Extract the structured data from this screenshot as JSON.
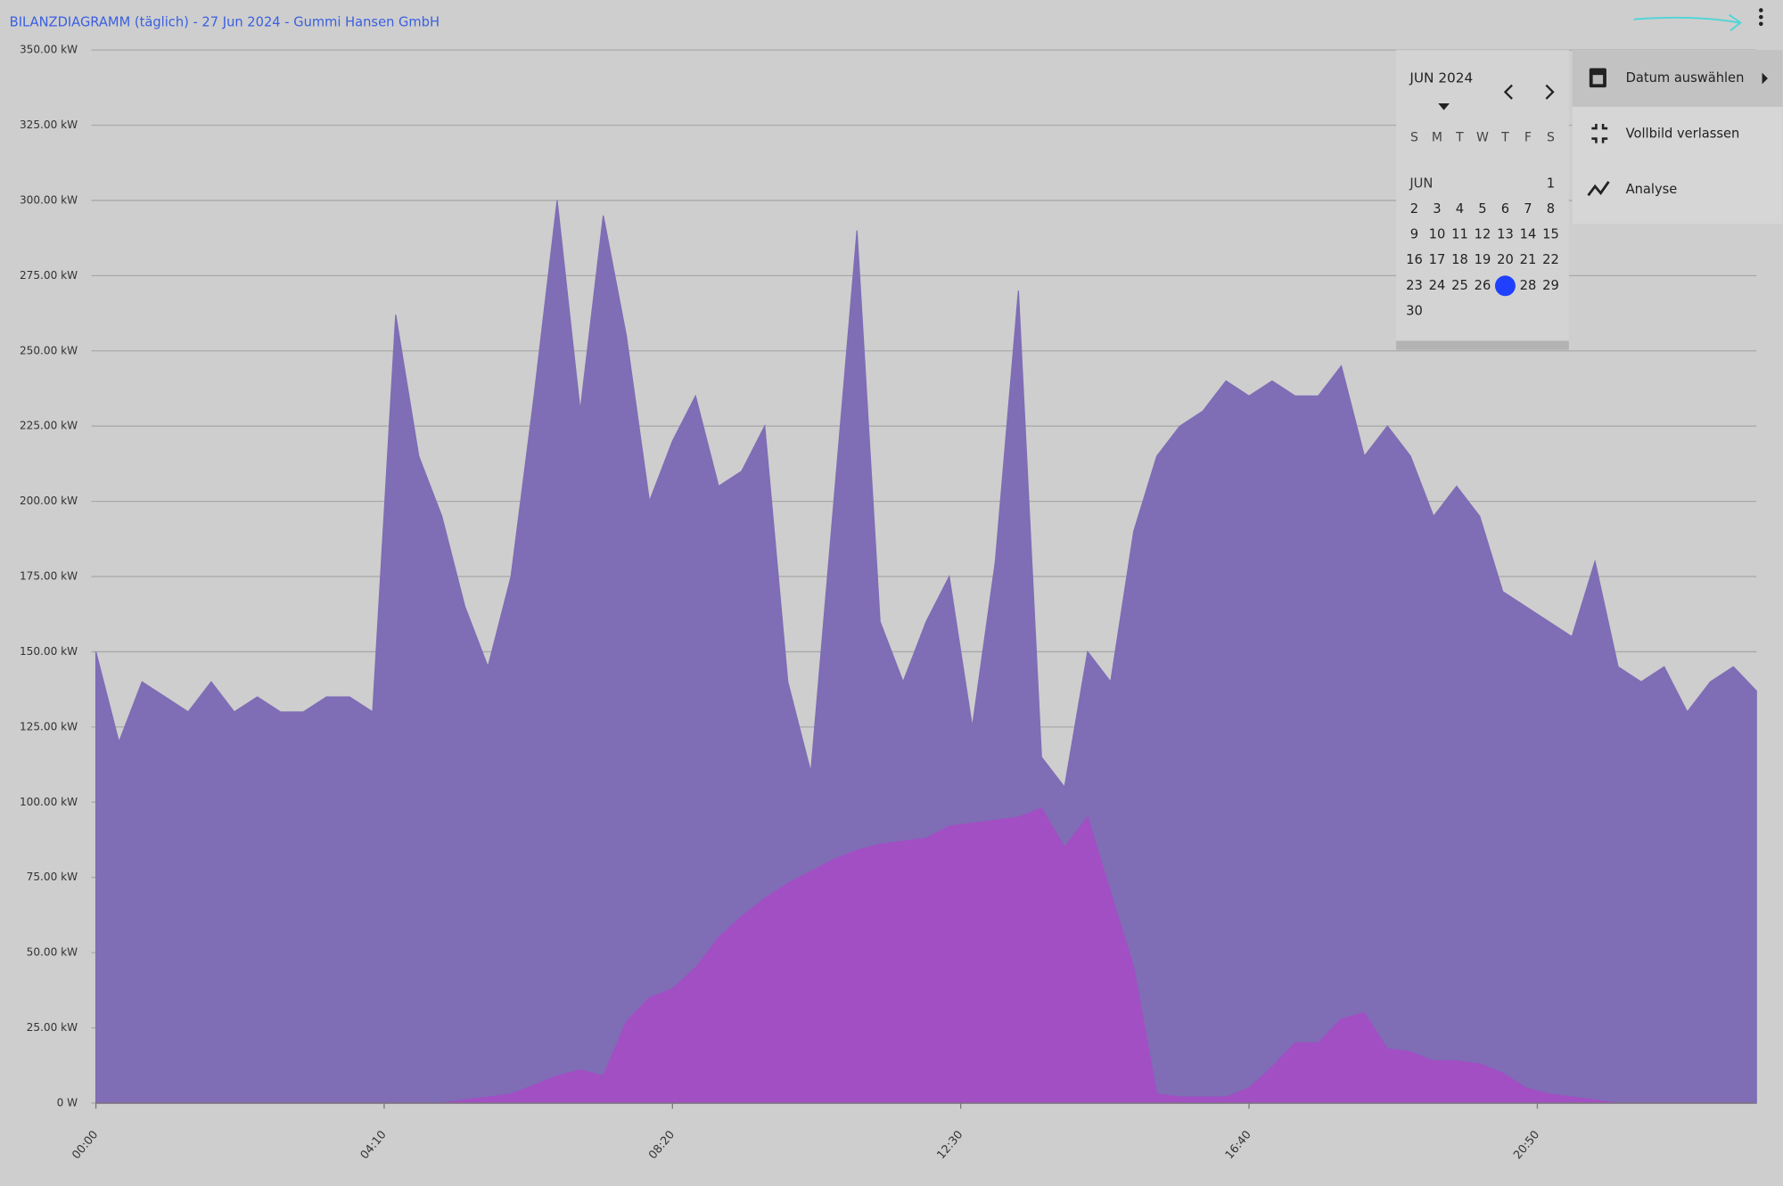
{
  "header": {
    "title": "BILANZDIAGRAMM (täglich) - 27 Jun 2024 - Gummi Hansen GmbH"
  },
  "chart_data": {
    "type": "area",
    "x": [
      0,
      20,
      40,
      60,
      80,
      100,
      120,
      140,
      160,
      180,
      200,
      220,
      240,
      260,
      280,
      300,
      320,
      340,
      360,
      380,
      400,
      420,
      440,
      460,
      480,
      500,
      520,
      540,
      560,
      580,
      600,
      620,
      640,
      660,
      680,
      700,
      720,
      740,
      760,
      780,
      800,
      820,
      840,
      860,
      880,
      900,
      920,
      940,
      960,
      980,
      1000,
      1020,
      1040,
      1060,
      1080,
      1100,
      1120,
      1140,
      1160,
      1180,
      1200,
      1220,
      1240,
      1260,
      1280,
      1300,
      1320,
      1340,
      1360,
      1380,
      1400,
      1420,
      1440
    ],
    "series": [
      {
        "color": "#7f6db5",
        "values": [
          150,
          120,
          140,
          135,
          130,
          140,
          130,
          135,
          130,
          130,
          135,
          135,
          130,
          262,
          215,
          195,
          165,
          145,
          175,
          235,
          300,
          230,
          295,
          255,
          200,
          220,
          235,
          205,
          210,
          225,
          140,
          110,
          200,
          290,
          160,
          140,
          160,
          175,
          125,
          180,
          270,
          115,
          105,
          150,
          140,
          190,
          215,
          225,
          230,
          240,
          235,
          240,
          235,
          235,
          245,
          215,
          225,
          215,
          195,
          205,
          195,
          170,
          165,
          160,
          155,
          180,
          145,
          140,
          145,
          130,
          140,
          145,
          137
        ]
      },
      {
        "color": "#a24fc4",
        "values": [
          0,
          0,
          0,
          0,
          0,
          0,
          0,
          0,
          0,
          0,
          0,
          0,
          0,
          0,
          0,
          0,
          1,
          2,
          3,
          6,
          9,
          11,
          9,
          27,
          35,
          38,
          45,
          55,
          62,
          68,
          73,
          77,
          81,
          84,
          86,
          87,
          88,
          92,
          93,
          94,
          95,
          98,
          85,
          95,
          70,
          45,
          3,
          2,
          2,
          2,
          5,
          12,
          20,
          20,
          28,
          30,
          18,
          17,
          14,
          14,
          13,
          10,
          5,
          3,
          2,
          1,
          0,
          0,
          0,
          0,
          0,
          0,
          0
        ]
      }
    ],
    "xlim": [
      0,
      1440
    ],
    "xticks": [
      {
        "value": 0,
        "label": "00:00"
      },
      {
        "value": 250,
        "label": "04:10"
      },
      {
        "value": 500,
        "label": "08:20"
      },
      {
        "value": 750,
        "label": "12:30"
      },
      {
        "value": 1000,
        "label": "16:40"
      },
      {
        "value": 1250,
        "label": "20:50"
      }
    ],
    "ylim": [
      0,
      350
    ],
    "yticks": [
      {
        "value": 0,
        "label": "0 W"
      },
      {
        "value": 25,
        "label": "25.00 kW"
      },
      {
        "value": 50,
        "label": "50.00 kW"
      },
      {
        "value": 75,
        "label": "75.00 kW"
      },
      {
        "value": 100,
        "label": "100.00 kW"
      },
      {
        "value": 125,
        "label": "125.00 kW"
      },
      {
        "value": 150,
        "label": "150.00 kW"
      },
      {
        "value": 175,
        "label": "175.00 kW"
      },
      {
        "value": 200,
        "label": "200.00 kW"
      },
      {
        "value": 225,
        "label": "225.00 kW"
      },
      {
        "value": 250,
        "label": "250.00 kW"
      },
      {
        "value": 275,
        "label": "275.00 kW"
      },
      {
        "value": 300,
        "label": "300.00 kW"
      },
      {
        "value": 325,
        "label": "325.00 kW"
      },
      {
        "value": 350,
        "label": "350.00 kW"
      }
    ],
    "grid": true
  },
  "calendar": {
    "month_label": "JUN 2024",
    "weekdays": [
      "S",
      "M",
      "T",
      "W",
      "T",
      "F",
      "S"
    ],
    "month_short": "JUN",
    "days": [
      1,
      2,
      3,
      4,
      5,
      6,
      7,
      8,
      9,
      10,
      11,
      12,
      13,
      14,
      15,
      16,
      17,
      18,
      19,
      20,
      21,
      22,
      23,
      24,
      25,
      26,
      27,
      28,
      29,
      30
    ],
    "selected_day": 27
  },
  "menu": {
    "items": [
      "Datum auswählen",
      "Vollbild verlassen",
      "Analyse"
    ]
  }
}
